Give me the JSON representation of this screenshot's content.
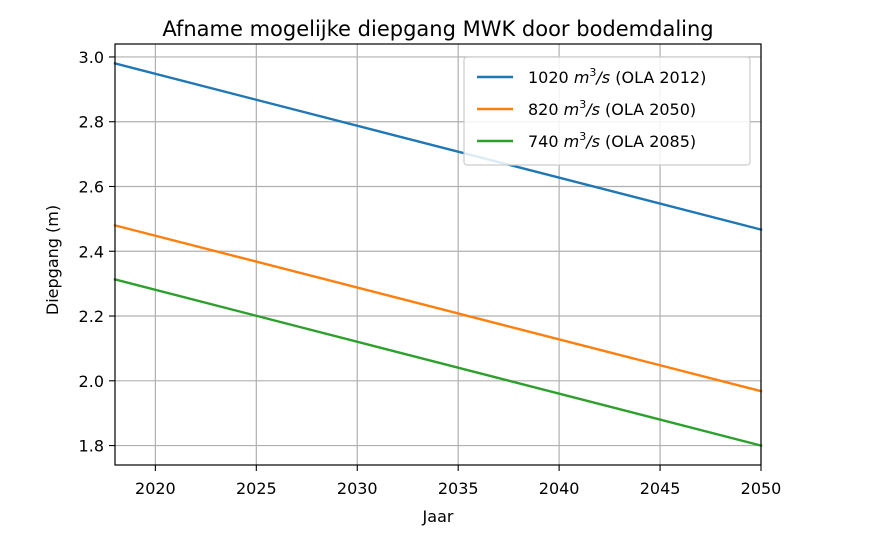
{
  "chart_data": {
    "type": "line",
    "title": "Afname mogelijke diepgang MWK door bodemdaling",
    "xlabel": "Jaar",
    "ylabel": "Diepgang (m)",
    "xlim": [
      2018,
      2050
    ],
    "ylim": [
      1.74,
      3.04
    ],
    "xticks": [
      2020,
      2025,
      2030,
      2035,
      2040,
      2045,
      2050
    ],
    "yticks": [
      1.8,
      2.0,
      2.2,
      2.4,
      2.6,
      2.8,
      3.0
    ],
    "xtick_labels": [
      "2020",
      "2025",
      "2030",
      "2035",
      "2040",
      "2045",
      "2050"
    ],
    "ytick_labels": [
      "1.8",
      "2.0",
      "2.2",
      "2.4",
      "2.6",
      "2.8",
      "3.0"
    ],
    "grid": true,
    "legend_position": "top-right",
    "series": [
      {
        "name": "1020 m³/s (OLA 2012)",
        "name_parts": {
          "value": "1020 ",
          "unit_base": "m",
          "unit_exp": "3",
          "unit_rest": "/s",
          "suffix": " (OLA 2012)"
        },
        "color": "#1f77b4",
        "x": [
          2018,
          2050
        ],
        "y": [
          2.98,
          2.467
        ]
      },
      {
        "name": "820 m³/s (OLA 2050)",
        "name_parts": {
          "value": "820 ",
          "unit_base": "m",
          "unit_exp": "3",
          "unit_rest": "/s",
          "suffix": " (OLA 2050)"
        },
        "color": "#ff7f0e",
        "x": [
          2018,
          2050
        ],
        "y": [
          2.48,
          1.968
        ]
      },
      {
        "name": "740 m³/s (OLA 2085)",
        "name_parts": {
          "value": "740 ",
          "unit_base": "m",
          "unit_exp": "3",
          "unit_rest": "/s",
          "suffix": " (OLA 2085)"
        },
        "color": "#2ca02c",
        "x": [
          2018,
          2050
        ],
        "y": [
          2.313,
          1.8
        ]
      }
    ]
  }
}
